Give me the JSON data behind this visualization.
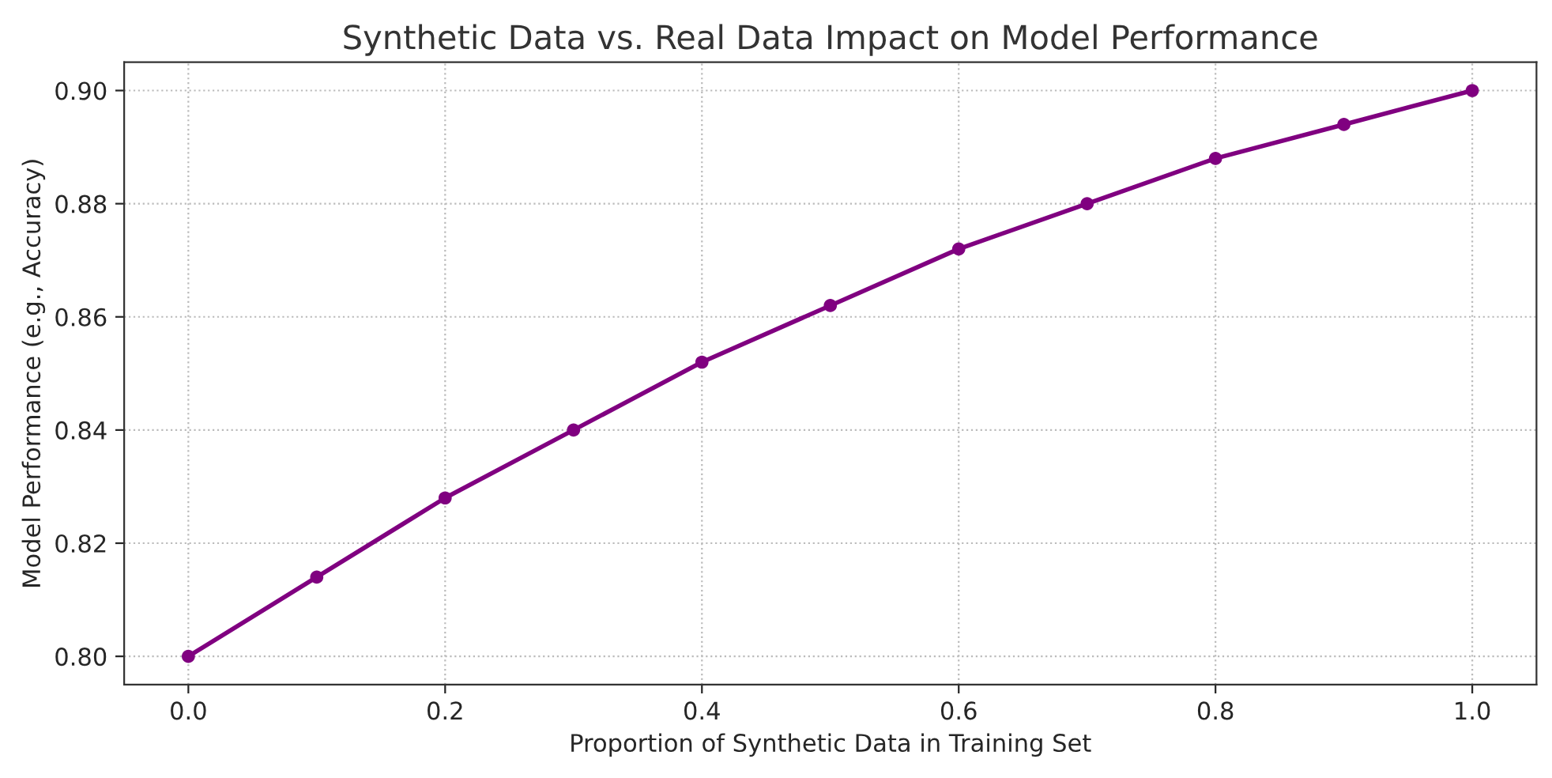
{
  "chart_data": {
    "type": "line",
    "title": "Synthetic Data vs. Real Data Impact on Model Performance",
    "xlabel": "Proportion of Synthetic Data in Training Set",
    "ylabel": "Model Performance (e.g., Accuracy)",
    "x": [
      0.0,
      0.1,
      0.2,
      0.3,
      0.4,
      0.5,
      0.6,
      0.7,
      0.8,
      0.9,
      1.0
    ],
    "series": [
      {
        "color": "#800080",
        "values": [
          0.8,
          0.814,
          0.828,
          0.84,
          0.852,
          0.862,
          0.872,
          0.88,
          0.888,
          0.894,
          0.9
        ]
      }
    ],
    "xlim": [
      -0.05,
      1.05
    ],
    "xticks": [
      {
        "value": 0,
        "label": "0.0"
      },
      0.2,
      0.4,
      0.6,
      0.8,
      {
        "value": 1,
        "label": "1.0"
      }
    ],
    "ylim": [
      0.795,
      0.905
    ],
    "yticks": [
      {
        "value": 0.8,
        "label": "0.80"
      },
      {
        "value": 0.82,
        "label": "0.82"
      },
      {
        "value": 0.84,
        "label": "0.84"
      },
      {
        "value": 0.86,
        "label": "0.86"
      },
      {
        "value": 0.88,
        "label": "0.88"
      },
      {
        "value": 0.9,
        "label": "0.90"
      }
    ],
    "grid": true,
    "marker": "circle",
    "line_style": "solid"
  }
}
